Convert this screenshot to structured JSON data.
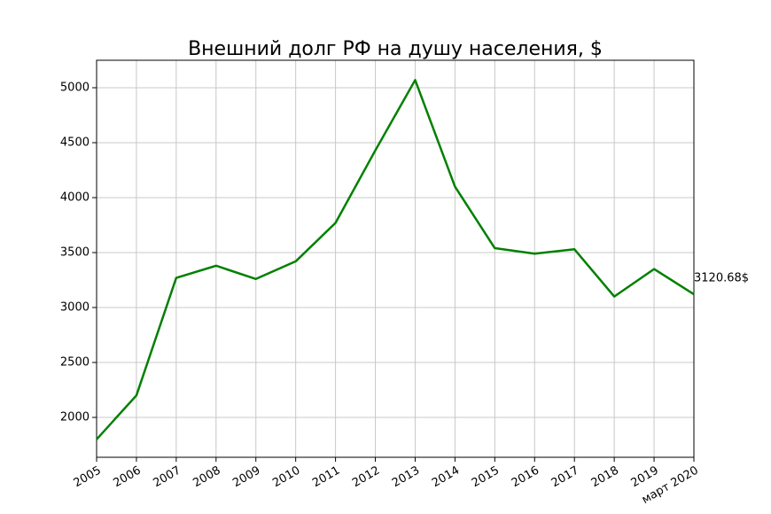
{
  "chart_data": {
    "type": "line",
    "title": "Внешний долг РФ на душу населения, $",
    "categories": [
      "2005",
      "2006",
      "2007",
      "2008",
      "2009",
      "2010",
      "2011",
      "2012",
      "2013",
      "2014",
      "2015",
      "2016",
      "2017",
      "2018",
      "2019",
      "март 2020"
    ],
    "series": [
      {
        "name": "Внешний долг РФ на душу населения",
        "color": "#008000",
        "values": [
          1800,
          2200,
          3270,
          3380,
          3260,
          3420,
          3770,
          4430,
          5070,
          4100,
          3540,
          3490,
          3530,
          3100,
          3350,
          3120.68
        ],
        "value_labels": [
          null,
          null,
          null,
          null,
          null,
          null,
          null,
          null,
          null,
          null,
          null,
          null,
          null,
          null,
          null,
          "3120.68$"
        ]
      }
    ],
    "ylim": [
      1637,
      5250
    ],
    "yticks": [
      2000,
      2500,
      3000,
      3500,
      4000,
      4500,
      5000
    ],
    "grid": true
  }
}
